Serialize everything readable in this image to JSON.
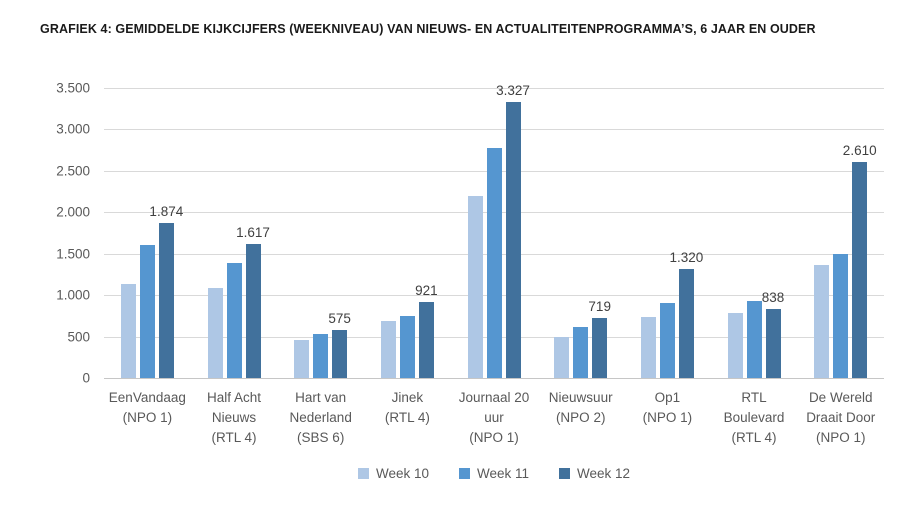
{
  "title": "GRAFIEK 4: GEMIDDELDE KIJKCIJFERS (WEEKNIVEAU) VAN NIEUWS- EN ACTUALITEITENPROGRAMMA’S, 6 JAAR EN OUDER",
  "colors": {
    "week10": "#aec7e5",
    "week11": "#5596d0",
    "week12": "#41719c",
    "gridline": "#d9d9d9",
    "axis_text": "#595959",
    "data_label_text": "#404040",
    "title_text": "#1a1a1a"
  },
  "chart_data": {
    "type": "bar",
    "title": "GRAFIEK 4: GEMIDDELDE KIJKCIJFERS (WEEKNIVEAU) VAN NIEUWS- EN ACTUALITEITENPROGRAMMA’S, 6 JAAR EN OUDER",
    "xlabel": "",
    "ylabel": "",
    "ylim": [
      0,
      3500
    ],
    "grid": true,
    "legend_position": "bottom",
    "y_axis": {
      "ticks": [
        {
          "value": 0,
          "label": "0"
        },
        {
          "value": 500,
          "label": "500"
        },
        {
          "value": 1000,
          "label": "1.000"
        },
        {
          "value": 1500,
          "label": "1.500"
        },
        {
          "value": 2000,
          "label": "2.000"
        },
        {
          "value": 2500,
          "label": "2.500"
        },
        {
          "value": 3000,
          "label": "3.000"
        },
        {
          "value": 3500,
          "label": "3.500"
        }
      ]
    },
    "categories": [
      {
        "name": "EenVandaag (NPO 1)",
        "lines": [
          "EenVandaag",
          "(NPO 1)"
        ]
      },
      {
        "name": "Half Acht Nieuws (RTL 4)",
        "lines": [
          "Half Acht",
          "Nieuws",
          "(RTL 4)"
        ]
      },
      {
        "name": "Hart van Nederland (SBS 6)",
        "lines": [
          "Hart van",
          "Nederland",
          "(SBS 6)"
        ]
      },
      {
        "name": "Jinek (RTL 4)",
        "lines": [
          "Jinek",
          "(RTL 4)"
        ]
      },
      {
        "name": "Journaal 20 uur (NPO 1)",
        "lines": [
          "Journaal 20",
          "uur",
          "(NPO 1)"
        ]
      },
      {
        "name": "Nieuwsuur (NPO 2)",
        "lines": [
          "Nieuwsuur",
          "(NPO 2)"
        ]
      },
      {
        "name": "Op1 (NPO 1)",
        "lines": [
          "Op1",
          "(NPO 1)"
        ]
      },
      {
        "name": "RTL Boulevard (RTL 4)",
        "lines": [
          "RTL",
          "Boulevard",
          "(RTL 4)"
        ]
      },
      {
        "name": "De Wereld Draait Door (NPO 1)",
        "lines": [
          "De Wereld",
          "Draait Door",
          "(NPO 1)"
        ]
      }
    ],
    "series": [
      {
        "name": "Week 10",
        "color": "#aec7e5",
        "values": [
          1130,
          1090,
          460,
          690,
          2200,
          490,
          740,
          790,
          1370
        ],
        "data_labels": [
          "",
          "",
          "",
          "",
          "",
          "",
          "",
          "",
          ""
        ]
      },
      {
        "name": "Week 11",
        "color": "#5596d0",
        "values": [
          1600,
          1390,
          530,
          750,
          2780,
          610,
          910,
          930,
          1500
        ],
        "data_labels": [
          "",
          "",
          "",
          "",
          "",
          "",
          "",
          "",
          ""
        ]
      },
      {
        "name": "Week 12",
        "color": "#41719c",
        "values": [
          1874,
          1617,
          575,
          921,
          3327,
          719,
          1320,
          838,
          2610
        ],
        "data_labels": [
          "1.874",
          "1.617",
          "575",
          "921",
          "3.327",
          "719",
          "1.320",
          "838",
          "2.610"
        ]
      }
    ]
  }
}
